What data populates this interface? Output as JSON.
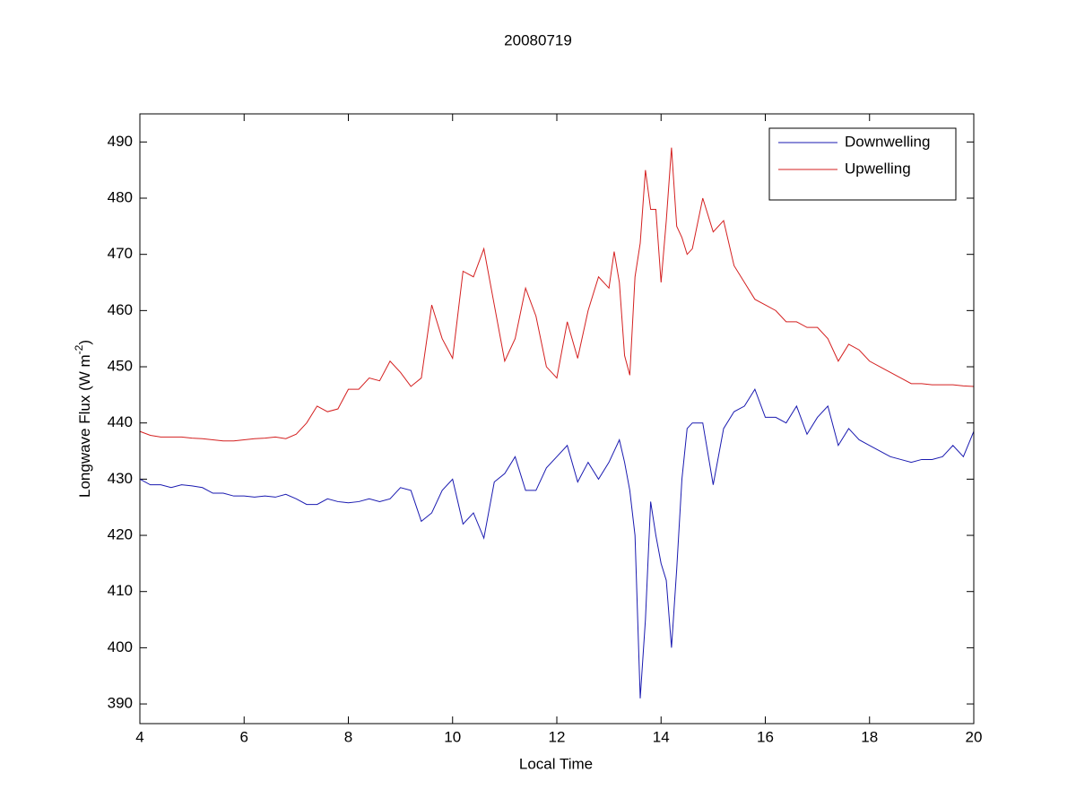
{
  "chart_data": {
    "type": "line",
    "title": "20080719",
    "xlabel": "Local Time",
    "ylabel": "Longwave Flux (W m",
    "ylabel_sup": "-2",
    "ylabel_end": ")",
    "xlim": [
      4,
      20
    ],
    "ylim": [
      386.5,
      495
    ],
    "xticks": [
      4,
      6,
      8,
      10,
      12,
      14,
      16,
      18,
      20
    ],
    "yticks": [
      390,
      400,
      410,
      420,
      430,
      440,
      450,
      460,
      470,
      480,
      490
    ],
    "grid": false,
    "legend": "upper right",
    "x": [
      4,
      4.2,
      4.4,
      4.6,
      4.8,
      5,
      5.2,
      5.4,
      5.6,
      5.8,
      6,
      6.2,
      6.4,
      6.6,
      6.8,
      7,
      7.2,
      7.4,
      7.6,
      7.8,
      8,
      8.2,
      8.4,
      8.6,
      8.8,
      9,
      9.2,
      9.4,
      9.6,
      9.8,
      10,
      10.2,
      10.4,
      10.6,
      10.8,
      11,
      11.2,
      11.4,
      11.6,
      11.8,
      12,
      12.2,
      12.4,
      12.6,
      12.8,
      13,
      13.1,
      13.2,
      13.3,
      13.4,
      13.5,
      13.6,
      13.7,
      13.8,
      13.9,
      14,
      14.1,
      14.2,
      14.3,
      14.4,
      14.5,
      14.6,
      14.8,
      15,
      15.2,
      15.4,
      15.6,
      15.8,
      16,
      16.2,
      16.4,
      16.6,
      16.8,
      17,
      17.2,
      17.4,
      17.6,
      17.8,
      18,
      18.2,
      18.4,
      18.6,
      18.8,
      19,
      19.2,
      19.4,
      19.6,
      19.8,
      20
    ],
    "series": [
      {
        "name": "Downwelling",
        "color": "#1a1ab0",
        "values": [
          430,
          429,
          429,
          428.5,
          429,
          428.8,
          428.5,
          427.5,
          427.5,
          427,
          427,
          426.8,
          427,
          426.8,
          427.3,
          426.5,
          425.5,
          425.5,
          426.5,
          426,
          425.8,
          426,
          426.5,
          426,
          426.5,
          428.5,
          428,
          422.5,
          424,
          428,
          430,
          422,
          424,
          419.5,
          429.5,
          431,
          434,
          428,
          428,
          432,
          434,
          436,
          429.5,
          433,
          430,
          433,
          435,
          437,
          433,
          428,
          420,
          391,
          405,
          426,
          420,
          415,
          412,
          400,
          414,
          430,
          439,
          440,
          440,
          429,
          439,
          442,
          443,
          446,
          441,
          441,
          440,
          443,
          438,
          441,
          443,
          436,
          439,
          437,
          436,
          435,
          434,
          433.5,
          433,
          433.5,
          433.5,
          434,
          436,
          434,
          438.5
        ]
      },
      {
        "name": "Upwelling",
        "color": "#d42020",
        "values": [
          438.5,
          437.8,
          437.5,
          437.5,
          437.5,
          437.3,
          437.2,
          437,
          436.8,
          436.8,
          437,
          437.2,
          437.3,
          437.5,
          437.2,
          438,
          440,
          443,
          442,
          442.5,
          446,
          446,
          448,
          447.5,
          451,
          449,
          446.5,
          448,
          461,
          455,
          451.5,
          467,
          466,
          471,
          461,
          451,
          455,
          464,
          459,
          450,
          448,
          458,
          451.5,
          460,
          466,
          464,
          470.5,
          465,
          452,
          448.5,
          466,
          472,
          485,
          478,
          478,
          465,
          476,
          489,
          475,
          473,
          470,
          471,
          480,
          474,
          476,
          468,
          465,
          462,
          461,
          460,
          458,
          458,
          457,
          457,
          455,
          451,
          454,
          453,
          451,
          450,
          449,
          448,
          447,
          447,
          446.8,
          446.8,
          446.8,
          446.6,
          446.5
        ]
      }
    ]
  }
}
